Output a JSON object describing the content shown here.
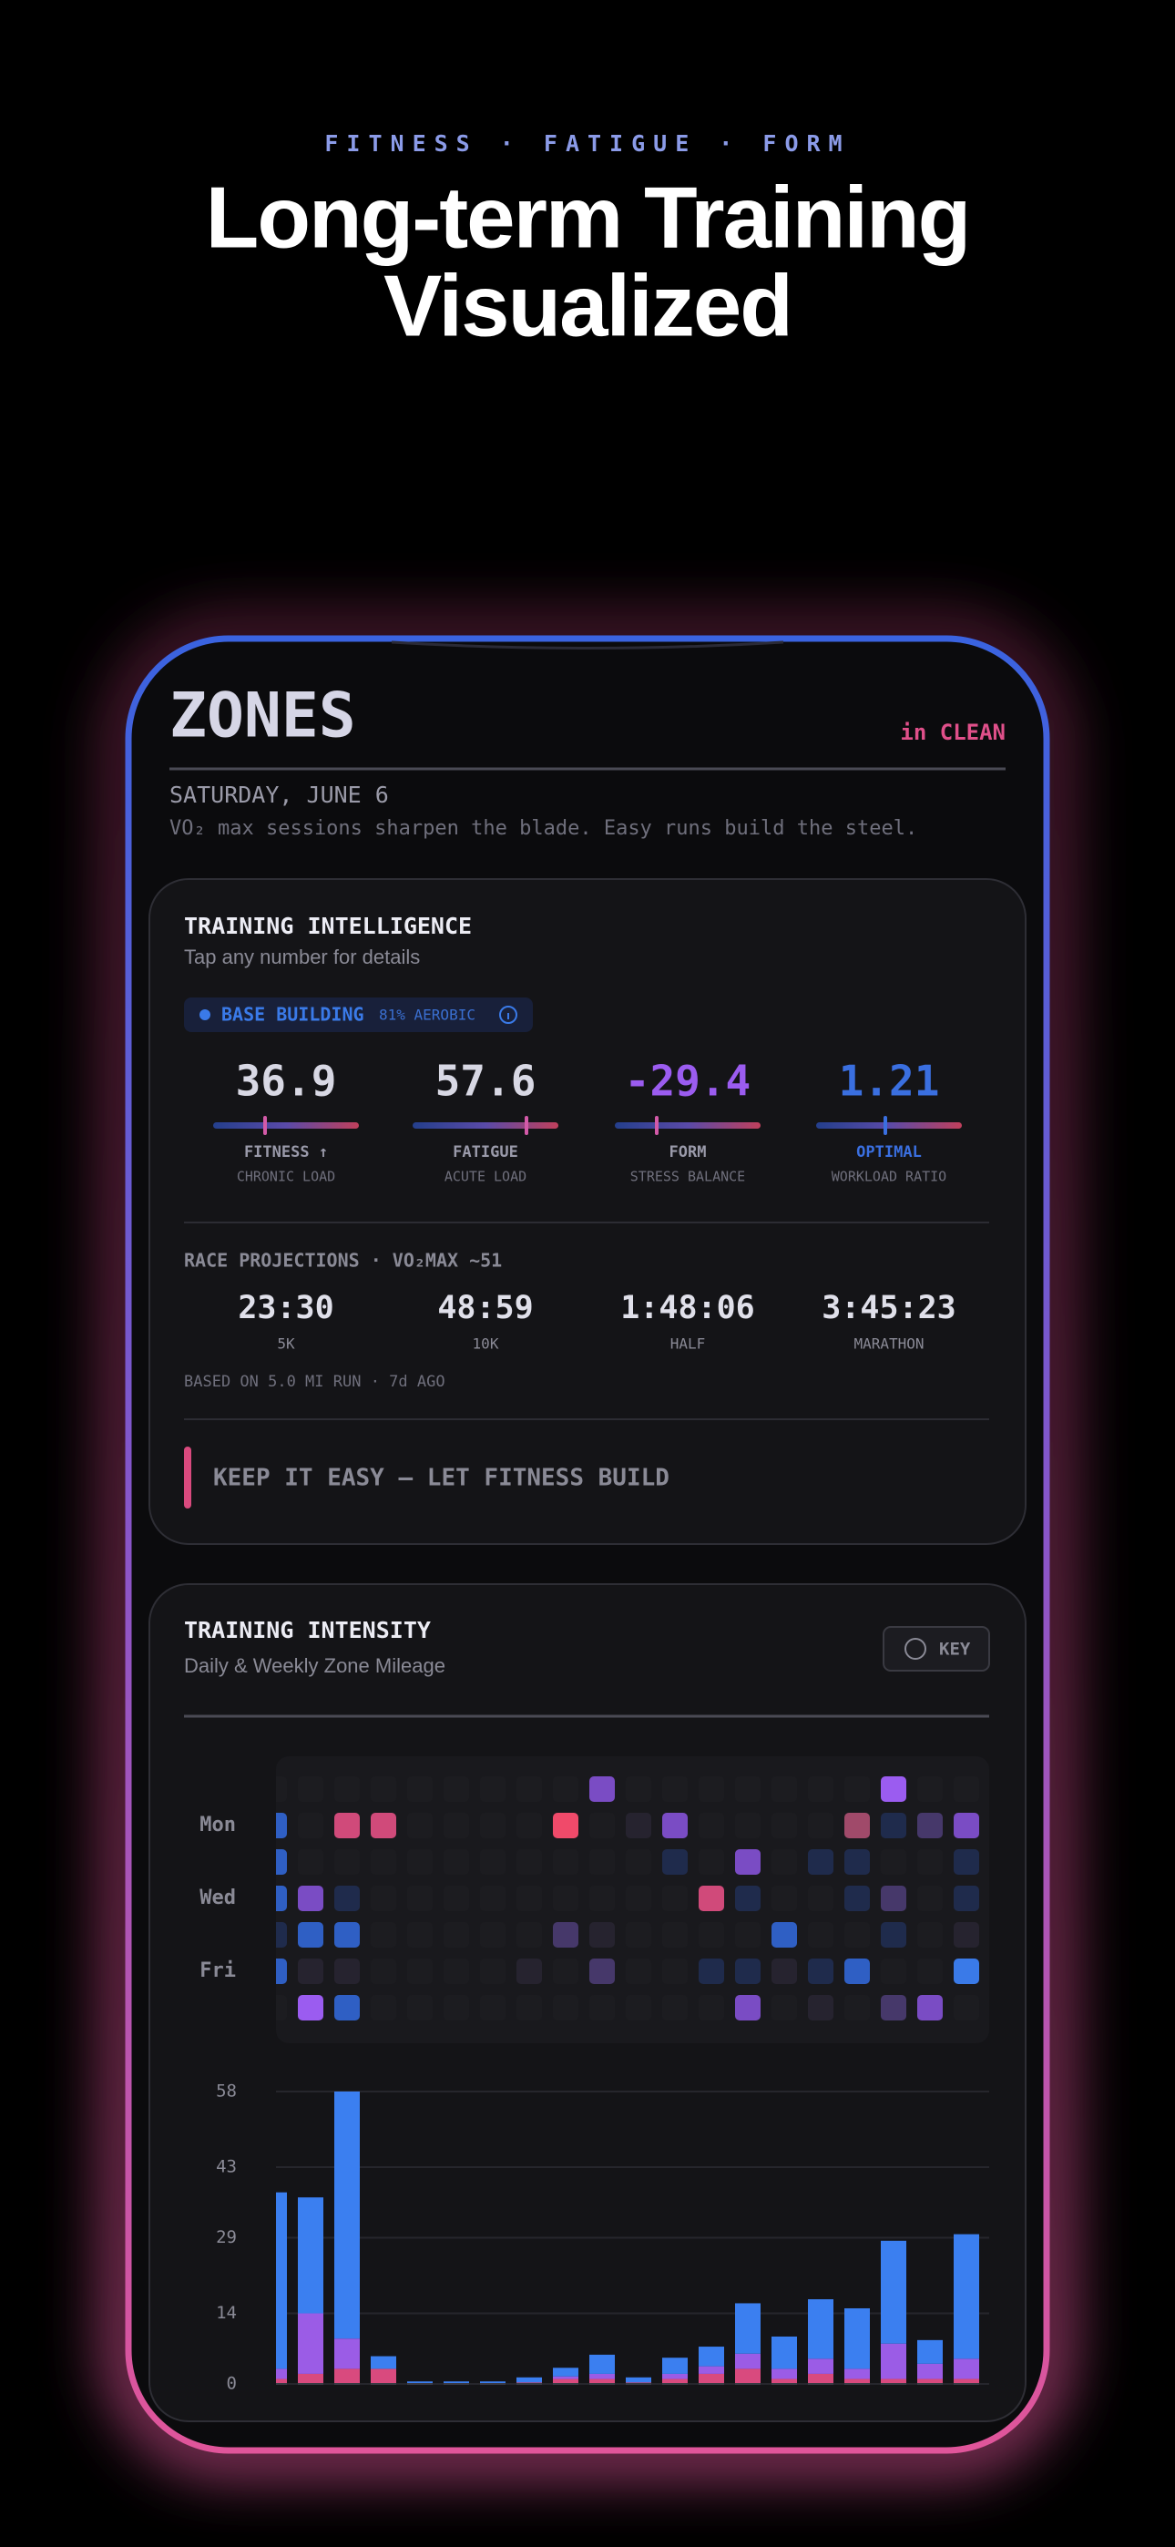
{
  "header": {
    "eyebrow": "FITNESS · FATIGUE · FORM",
    "title_lines": [
      "Long-term Training",
      "Visualized"
    ]
  },
  "app": {
    "title": "ZONES",
    "badge": "in CLEAN",
    "date": "SATURDAY, JUNE 6",
    "quote": "VO₂ max sessions sharpen the blade. Easy runs build the steel."
  },
  "intelligence": {
    "title": "TRAINING INTELLIGENCE",
    "subtitle": "Tap any number for details",
    "phase": "BASE BUILDING",
    "phase_detail": "81% AEROBIC",
    "metrics": [
      {
        "value": 36.9,
        "label": "FITNESS ↑",
        "sublabel": "CHRONIC LOAD",
        "color": "#d8d8e4",
        "label_color": "#9a9aaa"
      },
      {
        "value": 57.6,
        "label": "FATIGUE",
        "sublabel": "ACUTE LOAD",
        "color": "#d8d8e4",
        "label_color": "#9a9aaa"
      },
      {
        "value": -29.4,
        "label": "FORM",
        "sublabel": "STRESS BALANCE",
        "color": "#9b5cf0",
        "label_color": "#9a9aaa"
      },
      {
        "value": 1.21,
        "label": "OPTIMAL",
        "sublabel": "WORKLOAD RATIO",
        "color": "#3a6fe0",
        "label_color": "#3a6fe0"
      }
    ],
    "race_title": "RACE PROJECTIONS · VO₂MAX ~51",
    "races": [
      {
        "time": "23:30",
        "label": "5K"
      },
      {
        "time": "48:59",
        "label": "10K"
      },
      {
        "time": "1:48:06",
        "label": "HALF"
      },
      {
        "time": "3:45:23",
        "label": "MARATHON"
      }
    ],
    "race_note": "BASED ON 5.0 MI RUN · 7d AGO",
    "advice": "KEEP IT EASY — LET FITNESS BUILD"
  },
  "intensity": {
    "title": "TRAINING INTENSITY",
    "subtitle": "Daily & Weekly Zone Mileage",
    "key_button": "KEY"
  },
  "heatmap": {
    "row_labels": [
      "Mon",
      "Wed",
      "Fri"
    ],
    "palette": [
      "#1c1c20",
      "#1f2b4c",
      "#2f5fc4",
      "#3a7ae8",
      "#7a4cc4",
      "#9b5cf0",
      "#d04a7a",
      "#f04a6a",
      "#46386a",
      "#26232f",
      "#a04a6a"
    ],
    "cells": [
      [
        0,
        0,
        0,
        0,
        0,
        0,
        0,
        0,
        0,
        4,
        0,
        0,
        0,
        0,
        0,
        0,
        0,
        5,
        0,
        0
      ],
      [
        2,
        0,
        6,
        6,
        0,
        0,
        0,
        0,
        7,
        0,
        9,
        4,
        0,
        0,
        0,
        0,
        10,
        1,
        8,
        4
      ],
      [
        2,
        0,
        0,
        0,
        0,
        0,
        0,
        0,
        0,
        0,
        0,
        1,
        0,
        4,
        0,
        1,
        1,
        0,
        0,
        1
      ],
      [
        2,
        4,
        1,
        0,
        0,
        0,
        0,
        0,
        0,
        0,
        0,
        0,
        6,
        1,
        0,
        0,
        1,
        8,
        0,
        1
      ],
      [
        1,
        2,
        2,
        0,
        0,
        0,
        0,
        0,
        8,
        9,
        0,
        0,
        0,
        0,
        2,
        0,
        0,
        1,
        0,
        9
      ],
      [
        2,
        9,
        9,
        0,
        0,
        0,
        0,
        9,
        0,
        8,
        0,
        0,
        1,
        1,
        9,
        1,
        2,
        0,
        0,
        3
      ],
      [
        0,
        5,
        2,
        0,
        0,
        0,
        0,
        0,
        0,
        0,
        0,
        0,
        0,
        4,
        0,
        9,
        0,
        8,
        4,
        0
      ]
    ]
  },
  "chart_data": {
    "type": "bar",
    "stacked": true,
    "ylim": [
      0,
      58
    ],
    "yticks": [
      0,
      14,
      29,
      43,
      58
    ],
    "grid": true,
    "series": [
      {
        "color": "#d94a7e",
        "values": [
          1,
          2,
          3,
          3,
          0,
          0,
          0,
          0.3,
          1,
          1,
          0.3,
          1,
          2,
          3,
          1,
          2,
          1,
          1,
          1,
          1
        ]
      },
      {
        "color": "#9b5ce6",
        "values": [
          2,
          12,
          6,
          0,
          0,
          0,
          0,
          0,
          0.5,
          1,
          0,
          1,
          1.5,
          3,
          2,
          3,
          2,
          7,
          3,
          4
        ]
      },
      {
        "color": "#3b7ff0",
        "values": [
          35,
          23,
          49,
          2.5,
          0.5,
          0.5,
          0.5,
          1,
          1.7,
          3.8,
          1,
          3.2,
          3.9,
          10,
          6.4,
          11.8,
          12,
          20.4,
          4.7,
          24.7
        ]
      }
    ]
  }
}
